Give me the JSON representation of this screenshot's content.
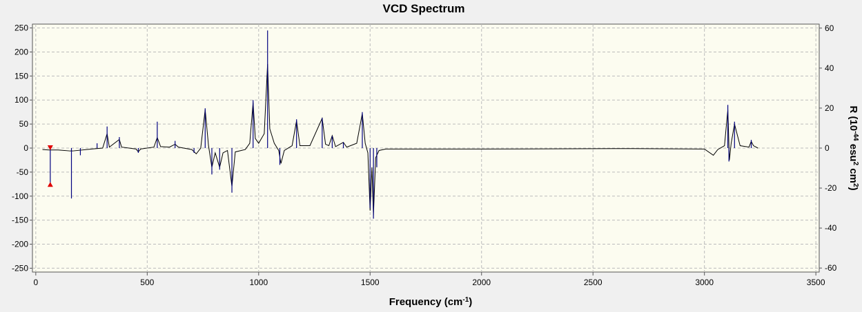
{
  "chart_data": {
    "type": "spectrum",
    "title": "VCD Spectrum",
    "xlabel": [
      "Frequency (cm",
      "-1",
      ")"
    ],
    "y2label": [
      "R (10",
      "-44",
      " esu",
      "2",
      " cm",
      "2",
      ")"
    ],
    "xlim": [
      -15,
      3515
    ],
    "xticks": [
      0,
      500,
      1000,
      1500,
      2000,
      2500,
      3000,
      3500
    ],
    "ylim": [
      -258,
      258
    ],
    "yticks": [
      -250,
      -200,
      -150,
      -100,
      -50,
      0,
      50,
      100,
      150,
      200,
      250
    ],
    "y2lim": [
      -62,
      62
    ],
    "y2ticks": [
      -60,
      -40,
      -20,
      0,
      20,
      40,
      60
    ],
    "grid": true,
    "series": [
      {
        "style": "line",
        "color": "#000000",
        "x": [
          30,
          60,
          100,
          155,
          165,
          250,
          300,
          320,
          330,
          375,
          385,
          450,
          460,
          470,
          530,
          545,
          560,
          600,
          625,
          640,
          700,
          720,
          740,
          760,
          775,
          790,
          805,
          825,
          840,
          860,
          880,
          895,
          940,
          960,
          975,
          985,
          1000,
          1025,
          1040,
          1050,
          1070,
          1090,
          1100,
          1115,
          1150,
          1170,
          1185,
          1230,
          1285,
          1300,
          1315,
          1330,
          1345,
          1380,
          1395,
          1440,
          1465,
          1478,
          1490,
          1500,
          1508,
          1515,
          1525,
          1540,
          1570,
          1660,
          2000,
          2680,
          3000,
          3040,
          3060,
          3090,
          3105,
          3112,
          3120,
          3135,
          3160,
          3200,
          3210,
          3220,
          3240
        ],
        "values": [
          -3,
          -4,
          -4,
          -6,
          -6,
          -2,
          0,
          30,
          2,
          18,
          2,
          -2,
          -8,
          -2,
          2,
          22,
          3,
          2,
          8,
          2,
          -3,
          -12,
          0,
          80,
          5,
          -40,
          -10,
          -40,
          -10,
          -5,
          -80,
          -8,
          -3,
          10,
          95,
          20,
          10,
          30,
          175,
          40,
          10,
          -5,
          -32,
          -5,
          5,
          57,
          5,
          5,
          62,
          8,
          5,
          26,
          3,
          12,
          2,
          10,
          72,
          10,
          -10,
          -130,
          -40,
          -140,
          -20,
          -5,
          -2,
          -2,
          -2,
          -1,
          -2,
          -15,
          -3,
          5,
          80,
          -25,
          10,
          50,
          5,
          2,
          14,
          5,
          0
        ]
      },
      {
        "style": "stick",
        "color": "#000080",
        "axis": "y2",
        "x": [
          65,
          160,
          200,
          275,
          320,
          375,
          460,
          545,
          625,
          710,
          760,
          790,
          825,
          880,
          975,
          1040,
          1095,
          1170,
          1285,
          1330,
          1380,
          1465,
          1500,
          1515,
          1530,
          3105,
          3110,
          3135,
          3210
        ],
        "values": [
          -18,
          -25.2,
          -3.6,
          2.4,
          10.8,
          5.5,
          -2.4,
          13.2,
          3.6,
          -2.4,
          19.9,
          -13.2,
          -10.8,
          -22.3,
          24,
          58.8,
          -8.4,
          14.4,
          15.1,
          6,
          2.9,
          18,
          -30,
          -35.3,
          -9.6,
          21.6,
          -6.7,
          13.2,
          4.1
        ]
      }
    ],
    "highlight": {
      "index": 0,
      "color": "#e00000"
    }
  }
}
